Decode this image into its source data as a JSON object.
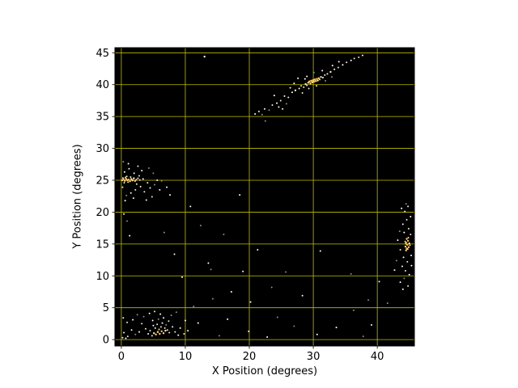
{
  "figure": {
    "background": "#ffffff"
  },
  "chart_data": {
    "type": "scatter",
    "title": "",
    "xlabel": "X Position (degrees)",
    "ylabel": "Y Position (degrees)",
    "xlim": [
      -1,
      45.8
    ],
    "ylim": [
      -1,
      45.8
    ],
    "xticks": [
      0,
      10,
      20,
      30,
      40
    ],
    "yticks": [
      0,
      5,
      10,
      15,
      20,
      25,
      30,
      35,
      40,
      45
    ],
    "grid": true,
    "grid_color": "#bfbf00",
    "plot_background": "#000000",
    "axis_color": "#000000",
    "point_palette": [
      "#ffffff",
      "#f2ead2",
      "#ffe8b0",
      "#ffd87a",
      "#ffc14a",
      "#8c8c8c"
    ],
    "clusters_note": "diagonal streak near (30,40.5); horizontal streak near (1,25); vertical streak near (44.5,15); dense blob near (6,1.5); sparse field points",
    "points": [
      [
        20.9,
        35.4,
        1,
        0
      ],
      [
        21.5,
        35.8,
        1,
        1
      ],
      [
        22.0,
        35.3,
        1,
        5
      ],
      [
        22.4,
        36.2,
        1,
        0
      ],
      [
        23.1,
        36.0,
        1,
        5
      ],
      [
        23.6,
        36.8,
        1,
        1
      ],
      [
        23.9,
        38.3,
        1,
        0
      ],
      [
        24.3,
        37.1,
        1,
        0
      ],
      [
        24.6,
        36.5,
        1,
        0
      ],
      [
        24.9,
        37.5,
        1,
        2
      ],
      [
        25.2,
        36.2,
        1,
        0
      ],
      [
        25.5,
        38.2,
        1,
        0
      ],
      [
        25.8,
        37.0,
        1,
        5
      ],
      [
        26.1,
        38.0,
        1,
        1
      ],
      [
        26.4,
        39.5,
        1,
        1
      ],
      [
        26.7,
        38.8,
        1,
        0
      ],
      [
        27.0,
        40.2,
        1,
        0
      ],
      [
        27.2,
        39.1,
        1.2,
        2
      ],
      [
        27.6,
        41.0,
        1,
        0
      ],
      [
        27.8,
        39.4,
        1,
        0
      ],
      [
        28.1,
        39.8,
        1,
        3
      ],
      [
        28.3,
        38.7,
        1,
        1
      ],
      [
        28.5,
        39.6,
        1,
        1
      ],
      [
        28.7,
        40.9,
        1,
        0
      ],
      [
        28.8,
        40.1,
        1.2,
        2
      ],
      [
        29.0,
        39.9,
        1,
        0
      ],
      [
        29.0,
        41.3,
        1,
        0
      ],
      [
        29.2,
        40.3,
        1.2,
        3
      ],
      [
        29.3,
        39.4,
        1,
        1
      ],
      [
        29.4,
        40.5,
        1.3,
        4
      ],
      [
        29.55,
        40.2,
        1.2,
        3
      ],
      [
        29.7,
        40.6,
        1.4,
        4
      ],
      [
        29.85,
        40.35,
        1.2,
        3
      ],
      [
        30.0,
        40.7,
        1.4,
        4
      ],
      [
        30.1,
        40.45,
        1.2,
        3
      ],
      [
        30.1,
        41.9,
        1,
        5
      ],
      [
        30.25,
        40.8,
        1.3,
        4
      ],
      [
        30.4,
        40.55,
        1.2,
        3
      ],
      [
        30.5,
        39.8,
        1,
        1
      ],
      [
        30.55,
        40.9,
        1.2,
        4
      ],
      [
        30.7,
        40.65,
        1.2,
        2
      ],
      [
        30.85,
        41.0,
        1.2,
        3
      ],
      [
        31.0,
        40.8,
        1,
        1
      ],
      [
        31.2,
        41.2,
        1.2,
        2
      ],
      [
        31.4,
        42.2,
        1,
        0
      ],
      [
        31.5,
        41.1,
        1,
        0
      ],
      [
        31.8,
        41.5,
        1,
        1
      ],
      [
        31.9,
        40.6,
        1,
        5
      ],
      [
        32.2,
        41.7,
        1,
        0
      ],
      [
        32.7,
        42.0,
        1.2,
        2
      ],
      [
        32.9,
        41.2,
        1,
        5
      ],
      [
        33.0,
        43.0,
        1,
        0
      ],
      [
        33.3,
        42.4,
        1,
        0
      ],
      [
        33.9,
        42.7,
        1,
        1
      ],
      [
        34.0,
        43.6,
        1,
        0
      ],
      [
        34.6,
        43.1,
        1,
        0
      ],
      [
        35.2,
        43.5,
        1,
        1
      ],
      [
        35.9,
        43.8,
        1,
        0
      ],
      [
        36.4,
        44.1,
        1,
        1
      ],
      [
        37.1,
        44.3,
        1,
        1
      ],
      [
        37.7,
        44.6,
        1,
        0
      ],
      [
        13.0,
        44.4,
        1.2,
        0
      ],
      [
        0.15,
        25.0,
        1.2,
        3
      ],
      [
        0.35,
        25.15,
        1.2,
        4
      ],
      [
        0.55,
        24.9,
        1.2,
        3
      ],
      [
        0.75,
        25.2,
        1.3,
        4
      ],
      [
        0.95,
        25.0,
        1.2,
        3
      ],
      [
        1.15,
        25.1,
        1.2,
        4
      ],
      [
        1.35,
        24.85,
        1.2,
        3
      ],
      [
        1.55,
        25.2,
        1.2,
        2
      ],
      [
        1.75,
        25.0,
        1.3,
        3
      ],
      [
        1.95,
        25.3,
        1.2,
        2
      ],
      [
        2.15,
        24.9,
        1.2,
        3
      ],
      [
        2.35,
        25.1,
        1,
        2
      ],
      [
        0.25,
        25.35,
        1,
        2
      ],
      [
        0.65,
        25.45,
        1,
        1
      ],
      [
        1.05,
        24.7,
        1,
        2
      ],
      [
        1.45,
        25.5,
        1,
        1
      ],
      [
        0.45,
        24.6,
        1,
        2
      ],
      [
        0.85,
        25.6,
        1,
        1
      ],
      [
        2.6,
        25.3,
        1,
        1
      ],
      [
        2.9,
        25.05,
        1,
        2
      ],
      [
        0.5,
        26.3,
        1,
        0
      ],
      [
        1.2,
        26.8,
        1,
        1
      ],
      [
        2.0,
        26.1,
        1,
        0
      ],
      [
        2.8,
        25.7,
        1,
        1
      ],
      [
        3.4,
        25.2,
        1,
        0
      ],
      [
        4.1,
        24.6,
        1,
        1
      ],
      [
        3.0,
        24.0,
        1,
        0
      ],
      [
        2.2,
        23.5,
        1,
        1
      ],
      [
        1.5,
        23.0,
        1,
        0
      ],
      [
        0.8,
        22.6,
        1,
        5
      ],
      [
        1.9,
        22.2,
        1,
        0
      ],
      [
        3.6,
        23.2,
        1,
        1
      ],
      [
        4.5,
        23.8,
        1,
        0
      ],
      [
        5.2,
        24.3,
        1,
        5
      ],
      [
        6.0,
        23.5,
        1,
        0
      ],
      [
        4.8,
        22.4,
        1,
        1
      ],
      [
        3.9,
        21.9,
        1,
        0
      ],
      [
        2.6,
        27.2,
        1,
        1
      ],
      [
        1.1,
        27.6,
        1,
        0
      ],
      [
        0.3,
        27.9,
        1,
        5
      ],
      [
        5.6,
        25.0,
        1,
        0
      ],
      [
        6.3,
        24.9,
        1,
        5
      ],
      [
        7.1,
        23.9,
        1,
        0
      ],
      [
        2.4,
        24.4,
        1,
        1
      ],
      [
        3.2,
        26.5,
        1,
        0
      ],
      [
        0.2,
        23.9,
        1,
        1
      ],
      [
        0.6,
        21.8,
        1,
        0
      ],
      [
        5.0,
        26.1,
        1,
        5
      ],
      [
        7.6,
        22.7,
        1,
        0
      ],
      [
        4.3,
        26.9,
        1,
        5
      ],
      [
        0.4,
        19.7,
        1,
        0
      ],
      [
        1.3,
        16.3,
        1,
        0
      ],
      [
        0.9,
        18.6,
        1,
        5
      ],
      [
        44.5,
        14.0,
        1.2,
        3
      ],
      [
        44.6,
        14.3,
        1.2,
        4
      ],
      [
        44.4,
        14.6,
        1.2,
        3
      ],
      [
        44.7,
        14.9,
        1.3,
        4
      ],
      [
        44.5,
        15.2,
        1.2,
        3
      ],
      [
        44.8,
        15.5,
        1.2,
        4
      ],
      [
        44.6,
        15.8,
        1.2,
        3
      ],
      [
        44.45,
        15.05,
        1.2,
        4
      ],
      [
        44.9,
        14.5,
        1.2,
        3
      ],
      [
        45.0,
        15.1,
        1.2,
        2
      ],
      [
        44.35,
        15.4,
        1,
        3
      ],
      [
        44.75,
        14.2,
        1,
        2
      ],
      [
        45.1,
        14.8,
        1,
        3
      ],
      [
        44.85,
        16.0,
        1,
        2
      ],
      [
        44.2,
        16.8,
        1,
        0
      ],
      [
        44.9,
        17.4,
        1,
        1
      ],
      [
        44.0,
        18.1,
        1,
        0
      ],
      [
        44.6,
        18.8,
        1,
        1
      ],
      [
        45.2,
        19.3,
        1,
        0
      ],
      [
        44.3,
        20.1,
        1,
        1
      ],
      [
        43.8,
        20.6,
        1,
        0
      ],
      [
        44.8,
        20.9,
        1,
        1
      ],
      [
        43.5,
        17.0,
        1,
        5
      ],
      [
        43.2,
        15.6,
        1,
        0
      ],
      [
        43.6,
        14.1,
        1,
        1
      ],
      [
        44.1,
        12.9,
        1,
        0
      ],
      [
        44.7,
        12.2,
        1,
        1
      ],
      [
        43.9,
        11.5,
        1,
        0
      ],
      [
        44.4,
        10.8,
        1,
        1
      ],
      [
        45.0,
        10.2,
        1,
        0
      ],
      [
        44.2,
        9.6,
        1,
        5
      ],
      [
        43.6,
        9.0,
        1,
        0
      ],
      [
        44.8,
        8.4,
        1,
        1
      ],
      [
        45.3,
        13.2,
        1,
        0
      ],
      [
        43.0,
        12.4,
        1,
        5
      ],
      [
        42.7,
        10.9,
        1,
        0
      ],
      [
        45.2,
        16.5,
        1,
        1
      ],
      [
        44.0,
        7.9,
        1,
        0
      ],
      [
        44.5,
        21.3,
        1,
        5
      ],
      [
        45.35,
        11.6,
        1,
        0
      ],
      [
        4.8,
        0.6,
        1,
        1
      ],
      [
        5.1,
        1.0,
        1.2,
        2
      ],
      [
        5.4,
        0.8,
        1.2,
        3
      ],
      [
        5.7,
        1.2,
        1.3,
        4
      ],
      [
        6.0,
        0.9,
        1.2,
        3
      ],
      [
        6.3,
        1.3,
        1.2,
        4
      ],
      [
        6.6,
        1.0,
        1.2,
        3
      ],
      [
        6.9,
        1.4,
        1.2,
        2
      ],
      [
        5.9,
        1.6,
        1,
        2
      ],
      [
        5.3,
        1.8,
        1,
        1
      ],
      [
        6.2,
        2.0,
        1,
        2
      ],
      [
        6.8,
        1.8,
        1,
        1
      ],
      [
        7.2,
        1.5,
        1,
        2
      ],
      [
        7.5,
        1.1,
        1,
        1
      ],
      [
        5.0,
        2.2,
        1,
        0
      ],
      [
        5.6,
        2.4,
        1,
        1
      ],
      [
        6.4,
        2.6,
        1,
        0
      ],
      [
        7.0,
        2.3,
        1,
        5
      ],
      [
        4.5,
        1.4,
        1,
        1
      ],
      [
        4.2,
        0.9,
        1,
        0
      ],
      [
        3.8,
        1.7,
        1,
        1
      ],
      [
        4.9,
        3.0,
        1,
        0
      ],
      [
        5.8,
        3.2,
        1,
        5
      ],
      [
        6.6,
        3.4,
        1,
        0
      ],
      [
        7.4,
        2.9,
        1,
        1
      ],
      [
        8.0,
        2.0,
        1,
        0
      ],
      [
        8.4,
        1.2,
        1,
        1
      ],
      [
        8.9,
        0.7,
        1,
        0
      ],
      [
        3.2,
        2.5,
        1,
        1
      ],
      [
        2.8,
        1.2,
        1,
        0
      ],
      [
        2.2,
        0.8,
        1,
        5
      ],
      [
        1.6,
        1.5,
        1,
        0
      ],
      [
        1.0,
        0.5,
        1,
        1
      ],
      [
        0.4,
        1.1,
        1,
        0
      ],
      [
        3.5,
        3.6,
        1,
        5
      ],
      [
        4.4,
        4.1,
        1,
        0
      ],
      [
        5.2,
        4.4,
        1,
        1
      ],
      [
        6.1,
        4.0,
        1,
        0
      ],
      [
        7.8,
        3.8,
        1,
        5
      ],
      [
        9.2,
        1.8,
        1,
        0
      ],
      [
        9.8,
        0.9,
        1,
        1
      ],
      [
        10.4,
        1.4,
        1,
        0
      ],
      [
        2.5,
        3.9,
        1,
        5
      ],
      [
        1.8,
        3.1,
        1,
        0
      ],
      [
        0.9,
        2.7,
        1,
        1
      ],
      [
        0.3,
        3.4,
        1,
        0
      ],
      [
        8.6,
        4.3,
        1,
        5
      ],
      [
        10.0,
        3.0,
        1,
        0
      ],
      [
        0.2,
        0.3,
        1,
        1
      ],
      [
        0.7,
        0.2,
        1,
        0
      ],
      [
        13.6,
        12.0,
        1,
        0
      ],
      [
        14.3,
        6.4,
        1,
        5
      ],
      [
        16.6,
        3.2,
        1,
        0
      ],
      [
        19.9,
        1.3,
        1,
        0
      ],
      [
        24.4,
        3.5,
        1,
        5
      ],
      [
        28.3,
        6.9,
        1,
        0
      ],
      [
        33.6,
        1.9,
        1,
        0
      ],
      [
        36.3,
        4.6,
        1,
        5
      ],
      [
        39.1,
        2.3,
        1,
        0
      ],
      [
        41.6,
        5.7,
        1,
        5
      ],
      [
        21.3,
        14.1,
        1,
        0
      ],
      [
        25.7,
        10.6,
        1,
        5
      ],
      [
        31.1,
        13.9,
        1,
        0
      ],
      [
        35.9,
        10.3,
        1,
        5
      ],
      [
        18.5,
        22.7,
        1,
        0
      ],
      [
        12.4,
        17.9,
        1,
        5
      ],
      [
        9.5,
        9.8,
        1,
        0
      ],
      [
        12.0,
        2.6,
        1,
        0
      ],
      [
        15.3,
        0.6,
        1,
        5
      ],
      [
        22.8,
        0.4,
        1,
        0
      ],
      [
        27.0,
        2.1,
        1,
        5
      ],
      [
        30.6,
        0.8,
        1,
        0
      ],
      [
        37.8,
        0.5,
        1,
        5
      ],
      [
        40.3,
        9.1,
        1,
        0
      ],
      [
        38.6,
        6.2,
        1,
        5
      ],
      [
        17.2,
        7.5,
        1,
        0
      ],
      [
        11.3,
        5.2,
        1,
        5
      ],
      [
        20.2,
        5.9,
        1,
        0
      ],
      [
        23.5,
        8.2,
        1,
        5
      ],
      [
        8.3,
        13.4,
        1,
        0
      ],
      [
        6.7,
        16.8,
        1,
        5
      ],
      [
        10.8,
        20.9,
        1,
        0
      ],
      [
        16.0,
        16.5,
        1,
        5
      ],
      [
        19.0,
        10.7,
        1,
        0
      ],
      [
        14.0,
        11.0,
        1,
        5
      ],
      [
        22.5,
        34.3,
        1,
        5
      ]
    ]
  }
}
